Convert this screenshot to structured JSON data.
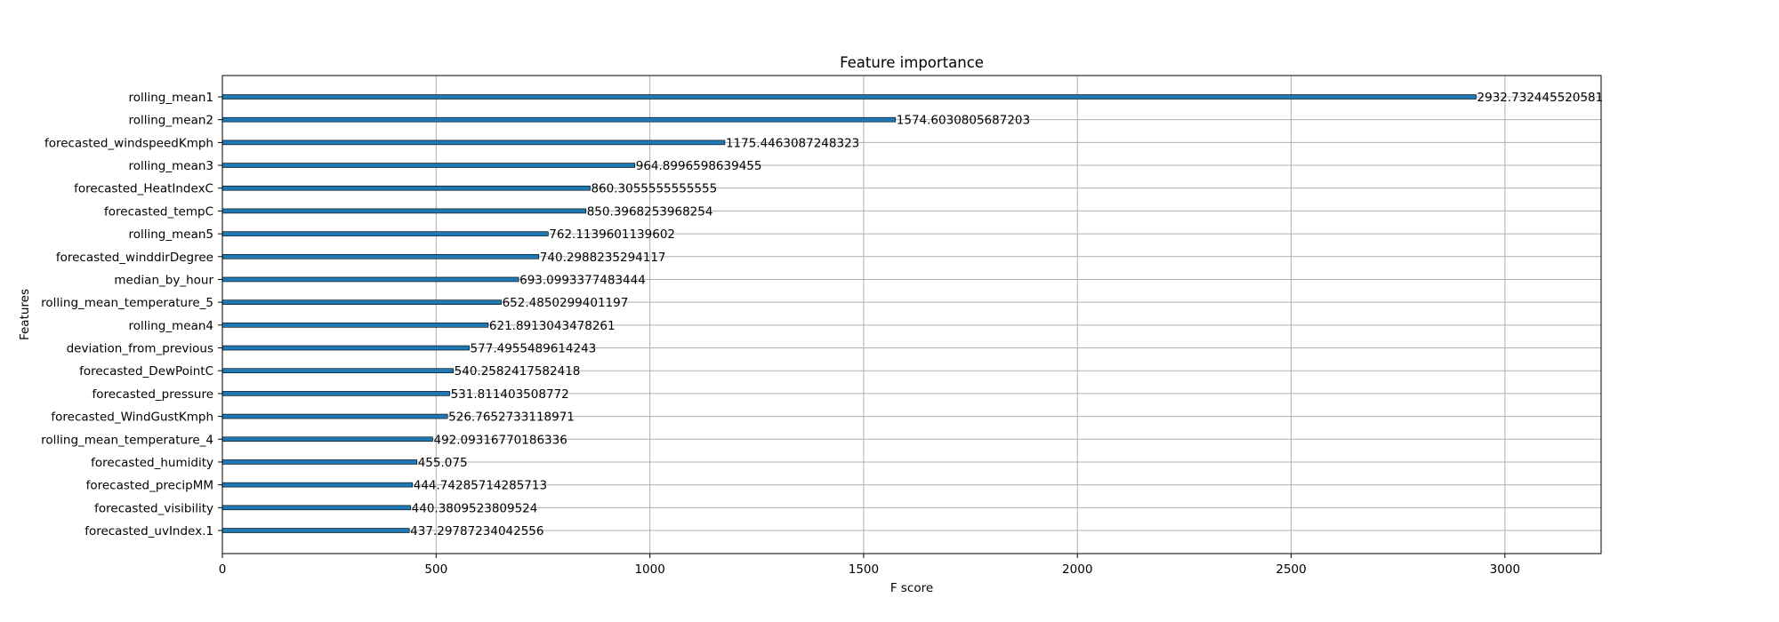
{
  "chart_data": {
    "type": "bar",
    "orientation": "horizontal",
    "title": "Feature importance",
    "xlabel": "F score",
    "ylabel": "Features",
    "xlim": [
      0,
      3225
    ],
    "xticks": [
      0,
      500,
      1000,
      1500,
      2000,
      2500,
      3000
    ],
    "grid": true,
    "bar_color": "#1f77b4",
    "categories": [
      "rolling_mean1",
      "rolling_mean2",
      "forecasted_windspeedKmph",
      "rolling_mean3",
      "forecasted_HeatIndexC",
      "forecasted_tempC",
      "rolling_mean5",
      "forecasted_winddirDegree",
      "median_by_hour",
      "rolling_mean_temperature_5",
      "rolling_mean4",
      "deviation_from_previous",
      "forecasted_DewPointC",
      "forecasted_pressure",
      "forecasted_WindGustKmph",
      "rolling_mean_temperature_4",
      "forecasted_humidity",
      "forecasted_precipMM",
      "forecasted_visibility",
      "forecasted_uvIndex.1"
    ],
    "values": [
      2932.732445520581,
      1574.6030805687203,
      1175.4463087248323,
      964.8996598639455,
      860.3055555555555,
      850.3968253968254,
      762.1139601139602,
      740.2988235294117,
      693.0993377483444,
      652.4850299401197,
      621.8913043478261,
      577.4955489614243,
      540.2582417582418,
      531.811403508772,
      526.7652733118971,
      492.09316770186336,
      455.075,
      444.74285714285713,
      440.3809523809524,
      437.29787234042556
    ],
    "value_labels": [
      "2932.732445520581",
      "1574.6030805687203",
      "1175.4463087248323",
      "964.8996598639455",
      "860.3055555555555",
      "850.3968253968254",
      "762.1139601139602",
      "740.2988235294117",
      "693.0993377483444",
      "652.4850299401197",
      "621.8913043478261",
      "577.4955489614243",
      "540.2582417582418",
      "531.811403508772",
      "526.7652733118971",
      "492.09316770186336",
      "455.075",
      "444.74285714285713",
      "440.3809523809524",
      "437.29787234042556"
    ]
  }
}
